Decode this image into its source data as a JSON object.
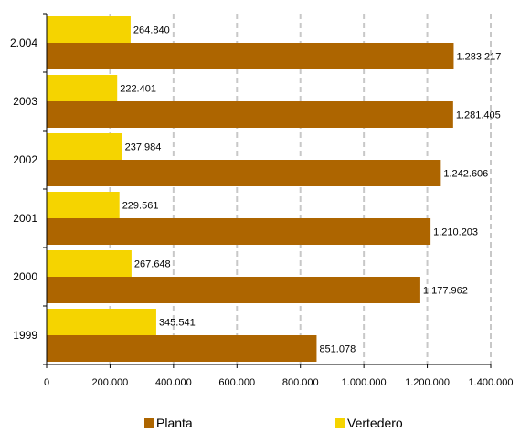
{
  "chart_data": {
    "type": "bar",
    "orientation": "horizontal",
    "categories": [
      "2.004",
      "2003",
      "2002",
      "2001",
      "2000",
      "1999"
    ],
    "series": [
      {
        "name": "Vertedero",
        "color": "#F5D400",
        "values": [
          264840,
          222401,
          237984,
          229561,
          267648,
          345541
        ],
        "labels": [
          "264.840",
          "222.401",
          "237.984",
          "229.561",
          "267.648",
          "345.541"
        ]
      },
      {
        "name": "Planta",
        "color": "#AD6500",
        "values": [
          1283217,
          1281405,
          1242606,
          1210203,
          1177962,
          851078
        ],
        "labels": [
          "1.283.217",
          "1.281.405",
          "1.242.606",
          "1.210.203",
          "1.177.962",
          "851.078"
        ]
      }
    ],
    "xlim": [
      0,
      1400000
    ],
    "xticks": [
      "0",
      "200.000",
      "400.000",
      "600.000",
      "800.000",
      "1.000.000",
      "1.200.000",
      "1.400.000"
    ],
    "grid": "vertical dashed",
    "legend_position": "bottom"
  },
  "legend": [
    {
      "name": "Planta",
      "color": "#AD6500"
    },
    {
      "name": "Vertedero",
      "color": "#F5D400"
    }
  ]
}
